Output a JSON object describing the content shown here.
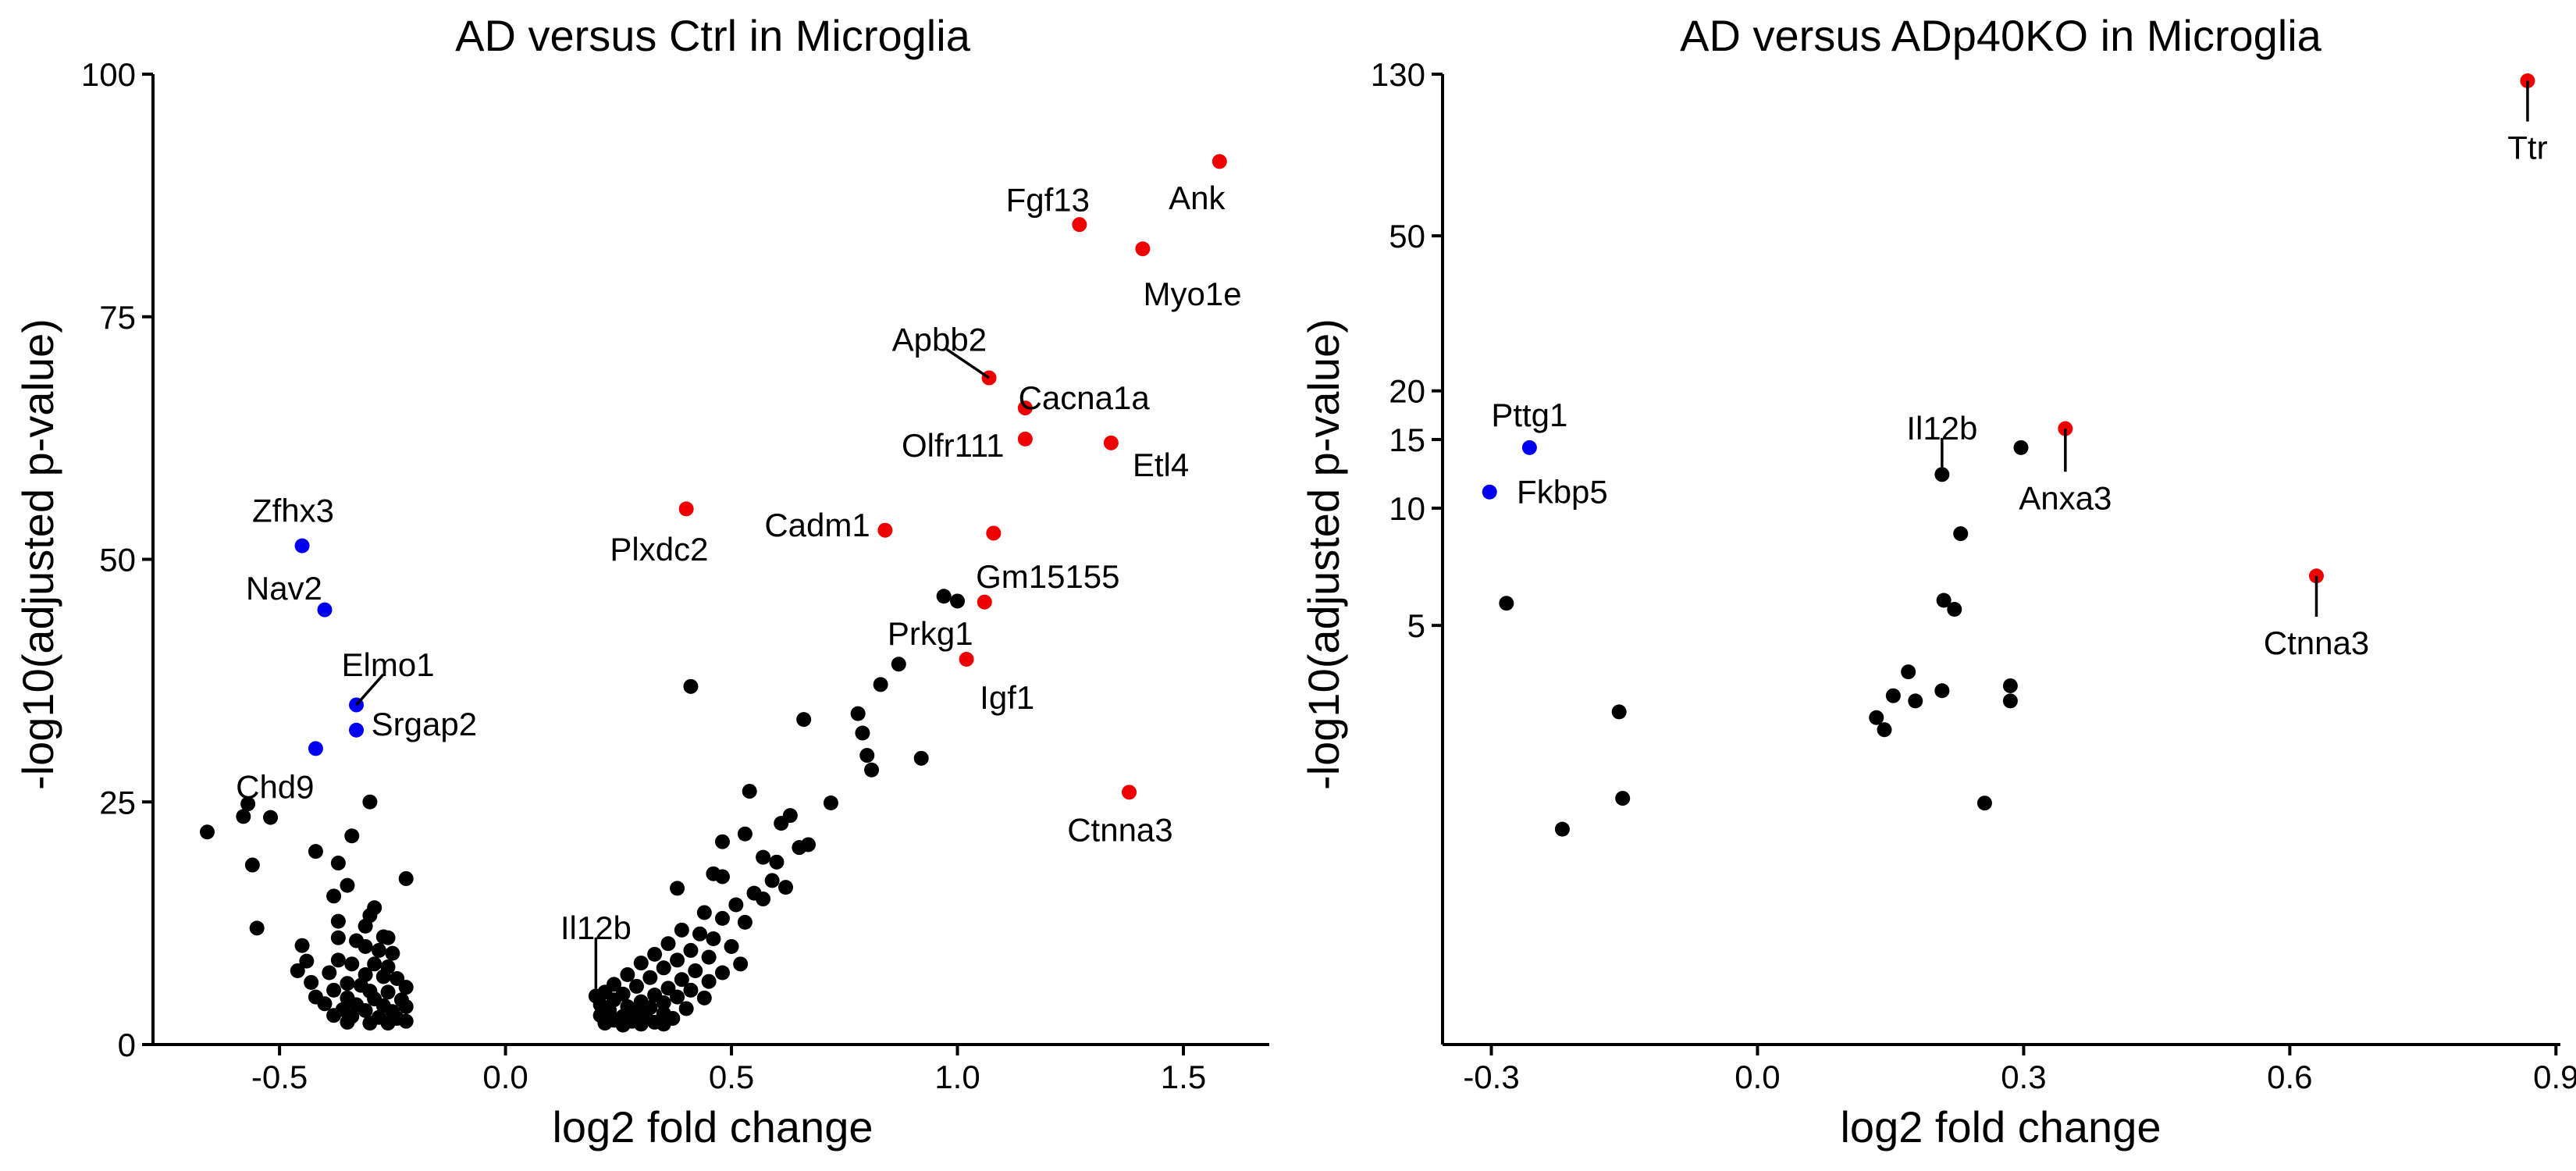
{
  "chart_data": [
    {
      "type": "scatter",
      "title": "AD versus Ctrl in Microglia",
      "xlabel": "log2 fold change",
      "ylabel": "-log10(adjusted p-value)",
      "xlim": [
        -0.78,
        1.69
      ],
      "ylim": [
        0,
        100
      ],
      "xticks": [
        -0.5,
        0.0,
        0.5,
        1.0,
        1.5
      ],
      "xtick_labels": [
        "-0.5",
        "0.0",
        "0.5",
        "1.0",
        "1.5"
      ],
      "yticks": [
        0,
        25,
        50,
        75,
        100
      ],
      "ytick_labels": [
        "0",
        "25",
        "50",
        "75",
        "100"
      ],
      "grid": false,
      "colors": {
        "up": "#ee0000",
        "down": "#0000ee",
        "ns": "#000000"
      },
      "points": [
        {
          "x": 1.58,
          "y": 91.0,
          "color": "up",
          "label": "Ank",
          "lx": 1.53,
          "ly": 87.2
        },
        {
          "x": 1.27,
          "y": 84.5,
          "color": "up",
          "label": "Fgf13",
          "lx": 1.2,
          "ly": 87.0
        },
        {
          "x": 1.41,
          "y": 82.0,
          "color": "up",
          "label": "Myo1e",
          "lx": 1.52,
          "ly": 77.3
        },
        {
          "x": 1.07,
          "y": 68.7,
          "color": "up",
          "label": "Apbb2",
          "lx": 0.96,
          "ly": 72.6,
          "leader": true
        },
        {
          "x": 1.15,
          "y": 65.6,
          "color": "up",
          "label": "Cacna1a",
          "lx": 1.28,
          "ly": 66.6
        },
        {
          "x": 1.15,
          "y": 62.4,
          "color": "up",
          "label": "Olfr111",
          "lx": 0.99,
          "ly": 61.7
        },
        {
          "x": 1.34,
          "y": 62.0,
          "color": "up",
          "label": "Etl4",
          "lx": 1.45,
          "ly": 59.7
        },
        {
          "x": 0.4,
          "y": 55.2,
          "color": "up",
          "label": "Plxdc2",
          "lx": 0.34,
          "ly": 51.0
        },
        {
          "x": 0.84,
          "y": 53.0,
          "color": "up",
          "label": "Cadm1",
          "lx": 0.69,
          "ly": 53.5
        },
        {
          "x": 1.08,
          "y": 52.7,
          "color": "up",
          "label": "Gm15155",
          "lx": 1.2,
          "ly": 48.2
        },
        {
          "x": 1.06,
          "y": 45.6,
          "color": "up",
          "label": "Prkg1",
          "lx": 0.94,
          "ly": 42.3
        },
        {
          "x": 1.02,
          "y": 39.7,
          "color": "up",
          "label": "Igf1",
          "lx": 1.11,
          "ly": 35.7
        },
        {
          "x": 1.38,
          "y": 26.0,
          "color": "up",
          "label": "Ctnna3",
          "lx": 1.36,
          "ly": 22.1
        },
        {
          "x": -0.45,
          "y": 51.4,
          "color": "down",
          "label": "Zfhx3",
          "lx": -0.47,
          "ly": 55.0
        },
        {
          "x": -0.4,
          "y": 44.8,
          "color": "down",
          "label": "Nav2",
          "lx": -0.49,
          "ly": 47.0
        },
        {
          "x": -0.33,
          "y": 35.0,
          "color": "down",
          "label": "Elmo1",
          "lx": -0.26,
          "ly": 39.1,
          "leader": true
        },
        {
          "x": -0.33,
          "y": 32.4,
          "color": "down",
          "label": "Srgap2",
          "lx": -0.18,
          "ly": 33.0
        },
        {
          "x": -0.42,
          "y": 30.5,
          "color": "down",
          "label": "Chd9",
          "lx": -0.51,
          "ly": 26.5
        },
        {
          "x": 0.2,
          "y": 5.0,
          "color": "ns",
          "label": "Il12b",
          "lx": 0.2,
          "ly": 12.0,
          "leader": true
        },
        {
          "x": -0.66,
          "y": 21.9,
          "color": "ns"
        },
        {
          "x": -0.58,
          "y": 23.5,
          "color": "ns"
        },
        {
          "x": -0.57,
          "y": 24.8,
          "color": "ns"
        },
        {
          "x": -0.52,
          "y": 23.4,
          "color": "ns"
        },
        {
          "x": -0.56,
          "y": 18.5,
          "color": "ns"
        },
        {
          "x": -0.55,
          "y": 12.0,
          "color": "ns"
        },
        {
          "x": -0.3,
          "y": 25.0,
          "color": "ns"
        },
        {
          "x": -0.34,
          "y": 21.5,
          "color": "ns"
        },
        {
          "x": -0.42,
          "y": 19.9,
          "color": "ns"
        },
        {
          "x": -0.37,
          "y": 18.7,
          "color": "ns"
        },
        {
          "x": -0.35,
          "y": 16.4,
          "color": "ns"
        },
        {
          "x": -0.22,
          "y": 17.1,
          "color": "ns"
        },
        {
          "x": -0.38,
          "y": 15.3,
          "color": "ns"
        },
        {
          "x": -0.29,
          "y": 14.1,
          "color": "ns"
        },
        {
          "x": -0.3,
          "y": 13.3,
          "color": "ns"
        },
        {
          "x": -0.37,
          "y": 12.7,
          "color": "ns"
        },
        {
          "x": -0.31,
          "y": 12.2,
          "color": "ns"
        },
        {
          "x": -0.27,
          "y": 11.1,
          "color": "ns"
        },
        {
          "x": -0.26,
          "y": 11.0,
          "color": "ns"
        },
        {
          "x": -0.37,
          "y": 11.0,
          "color": "ns"
        },
        {
          "x": -0.33,
          "y": 10.7,
          "color": "ns"
        },
        {
          "x": -0.45,
          "y": 10.2,
          "color": "ns"
        },
        {
          "x": -0.31,
          "y": 10.1,
          "color": "ns"
        },
        {
          "x": -0.28,
          "y": 9.7,
          "color": "ns"
        },
        {
          "x": -0.25,
          "y": 9.4,
          "color": "ns"
        },
        {
          "x": -0.44,
          "y": 8.6,
          "color": "ns"
        },
        {
          "x": -0.37,
          "y": 8.7,
          "color": "ns"
        },
        {
          "x": -0.34,
          "y": 8.3,
          "color": "ns"
        },
        {
          "x": -0.29,
          "y": 8.3,
          "color": "ns"
        },
        {
          "x": -0.26,
          "y": 8.0,
          "color": "ns"
        },
        {
          "x": -0.46,
          "y": 7.6,
          "color": "ns"
        },
        {
          "x": -0.39,
          "y": 7.4,
          "color": "ns"
        },
        {
          "x": -0.31,
          "y": 7.2,
          "color": "ns"
        },
        {
          "x": -0.27,
          "y": 7.0,
          "color": "ns"
        },
        {
          "x": -0.24,
          "y": 6.8,
          "color": "ns"
        },
        {
          "x": -0.43,
          "y": 6.4,
          "color": "ns"
        },
        {
          "x": -0.35,
          "y": 6.3,
          "color": "ns"
        },
        {
          "x": -0.32,
          "y": 6.1,
          "color": "ns"
        },
        {
          "x": -0.22,
          "y": 5.9,
          "color": "ns"
        },
        {
          "x": -0.38,
          "y": 5.6,
          "color": "ns"
        },
        {
          "x": -0.3,
          "y": 5.5,
          "color": "ns"
        },
        {
          "x": -0.26,
          "y": 5.4,
          "color": "ns"
        },
        {
          "x": -0.42,
          "y": 4.9,
          "color": "ns"
        },
        {
          "x": -0.35,
          "y": 4.8,
          "color": "ns"
        },
        {
          "x": -0.29,
          "y": 4.7,
          "color": "ns"
        },
        {
          "x": -0.23,
          "y": 4.6,
          "color": "ns"
        },
        {
          "x": -0.4,
          "y": 4.2,
          "color": "ns"
        },
        {
          "x": -0.33,
          "y": 4.1,
          "color": "ns"
        },
        {
          "x": -0.27,
          "y": 4.0,
          "color": "ns"
        },
        {
          "x": -0.22,
          "y": 3.9,
          "color": "ns"
        },
        {
          "x": -0.36,
          "y": 3.6,
          "color": "ns"
        },
        {
          "x": -0.31,
          "y": 3.5,
          "color": "ns"
        },
        {
          "x": -0.25,
          "y": 3.4,
          "color": "ns"
        },
        {
          "x": -0.38,
          "y": 3.0,
          "color": "ns"
        },
        {
          "x": -0.34,
          "y": 2.9,
          "color": "ns"
        },
        {
          "x": -0.28,
          "y": 2.8,
          "color": "ns"
        },
        {
          "x": -0.24,
          "y": 2.7,
          "color": "ns"
        },
        {
          "x": -0.22,
          "y": 2.4,
          "color": "ns"
        },
        {
          "x": -0.35,
          "y": 2.3,
          "color": "ns"
        },
        {
          "x": -0.3,
          "y": 2.2,
          "color": "ns"
        },
        {
          "x": -0.26,
          "y": 2.2,
          "color": "ns"
        },
        {
          "x": 0.97,
          "y": 46.2,
          "color": "ns"
        },
        {
          "x": 1.0,
          "y": 45.7,
          "color": "ns"
        },
        {
          "x": 0.87,
          "y": 39.2,
          "color": "ns"
        },
        {
          "x": 0.83,
          "y": 37.1,
          "color": "ns"
        },
        {
          "x": 0.41,
          "y": 36.9,
          "color": "ns"
        },
        {
          "x": 0.78,
          "y": 34.1,
          "color": "ns"
        },
        {
          "x": 0.66,
          "y": 33.5,
          "color": "ns"
        },
        {
          "x": 0.79,
          "y": 32.1,
          "color": "ns"
        },
        {
          "x": 0.8,
          "y": 29.8,
          "color": "ns"
        },
        {
          "x": 0.92,
          "y": 29.5,
          "color": "ns"
        },
        {
          "x": 0.81,
          "y": 28.3,
          "color": "ns"
        },
        {
          "x": 0.54,
          "y": 26.1,
          "color": "ns"
        },
        {
          "x": 0.72,
          "y": 24.9,
          "color": "ns"
        },
        {
          "x": 0.63,
          "y": 23.6,
          "color": "ns"
        },
        {
          "x": 0.61,
          "y": 22.8,
          "color": "ns"
        },
        {
          "x": 0.53,
          "y": 21.7,
          "color": "ns"
        },
        {
          "x": 0.48,
          "y": 20.9,
          "color": "ns"
        },
        {
          "x": 0.67,
          "y": 20.6,
          "color": "ns"
        },
        {
          "x": 0.65,
          "y": 20.3,
          "color": "ns"
        },
        {
          "x": 0.57,
          "y": 19.3,
          "color": "ns"
        },
        {
          "x": 0.6,
          "y": 18.8,
          "color": "ns"
        },
        {
          "x": 0.46,
          "y": 17.6,
          "color": "ns"
        },
        {
          "x": 0.48,
          "y": 17.3,
          "color": "ns"
        },
        {
          "x": 0.59,
          "y": 16.9,
          "color": "ns"
        },
        {
          "x": 0.62,
          "y": 16.2,
          "color": "ns"
        },
        {
          "x": 0.38,
          "y": 16.1,
          "color": "ns"
        },
        {
          "x": 0.55,
          "y": 15.6,
          "color": "ns"
        },
        {
          "x": 0.57,
          "y": 15.0,
          "color": "ns"
        },
        {
          "x": 0.51,
          "y": 14.4,
          "color": "ns"
        },
        {
          "x": 0.44,
          "y": 13.6,
          "color": "ns"
        },
        {
          "x": 0.48,
          "y": 13.0,
          "color": "ns"
        },
        {
          "x": 0.53,
          "y": 12.6,
          "color": "ns"
        },
        {
          "x": 0.39,
          "y": 11.8,
          "color": "ns"
        },
        {
          "x": 0.43,
          "y": 11.4,
          "color": "ns"
        },
        {
          "x": 0.46,
          "y": 10.9,
          "color": "ns"
        },
        {
          "x": 0.36,
          "y": 10.4,
          "color": "ns"
        },
        {
          "x": 0.5,
          "y": 10.1,
          "color": "ns"
        },
        {
          "x": 0.41,
          "y": 9.7,
          "color": "ns"
        },
        {
          "x": 0.33,
          "y": 9.3,
          "color": "ns"
        },
        {
          "x": 0.45,
          "y": 9.0,
          "color": "ns"
        },
        {
          "x": 0.38,
          "y": 8.7,
          "color": "ns"
        },
        {
          "x": 0.3,
          "y": 8.4,
          "color": "ns"
        },
        {
          "x": 0.52,
          "y": 8.3,
          "color": "ns"
        },
        {
          "x": 0.35,
          "y": 7.9,
          "color": "ns"
        },
        {
          "x": 0.42,
          "y": 7.6,
          "color": "ns"
        },
        {
          "x": 0.48,
          "y": 7.4,
          "color": "ns"
        },
        {
          "x": 0.27,
          "y": 7.2,
          "color": "ns"
        },
        {
          "x": 0.32,
          "y": 6.9,
          "color": "ns"
        },
        {
          "x": 0.39,
          "y": 6.7,
          "color": "ns"
        },
        {
          "x": 0.45,
          "y": 6.5,
          "color": "ns"
        },
        {
          "x": 0.24,
          "y": 6.2,
          "color": "ns"
        },
        {
          "x": 0.29,
          "y": 6.0,
          "color": "ns"
        },
        {
          "x": 0.36,
          "y": 5.8,
          "color": "ns"
        },
        {
          "x": 0.41,
          "y": 5.6,
          "color": "ns"
        },
        {
          "x": 0.22,
          "y": 5.4,
          "color": "ns"
        },
        {
          "x": 0.26,
          "y": 5.2,
          "color": "ns"
        },
        {
          "x": 0.33,
          "y": 5.1,
          "color": "ns"
        },
        {
          "x": 0.38,
          "y": 4.9,
          "color": "ns"
        },
        {
          "x": 0.44,
          "y": 4.8,
          "color": "ns"
        },
        {
          "x": 0.24,
          "y": 4.6,
          "color": "ns"
        },
        {
          "x": 0.3,
          "y": 4.4,
          "color": "ns"
        },
        {
          "x": 0.35,
          "y": 4.3,
          "color": "ns"
        },
        {
          "x": 0.21,
          "y": 4.1,
          "color": "ns"
        },
        {
          "x": 0.27,
          "y": 3.9,
          "color": "ns"
        },
        {
          "x": 0.32,
          "y": 3.8,
          "color": "ns"
        },
        {
          "x": 0.4,
          "y": 3.7,
          "color": "ns"
        },
        {
          "x": 0.23,
          "y": 3.5,
          "color": "ns"
        },
        {
          "x": 0.29,
          "y": 3.4,
          "color": "ns"
        },
        {
          "x": 0.35,
          "y": 3.2,
          "color": "ns"
        },
        {
          "x": 0.21,
          "y": 3.0,
          "color": "ns"
        },
        {
          "x": 0.26,
          "y": 2.9,
          "color": "ns"
        },
        {
          "x": 0.31,
          "y": 2.8,
          "color": "ns"
        },
        {
          "x": 0.37,
          "y": 2.7,
          "color": "ns"
        },
        {
          "x": 0.24,
          "y": 2.5,
          "color": "ns"
        },
        {
          "x": 0.28,
          "y": 2.4,
          "color": "ns"
        },
        {
          "x": 0.33,
          "y": 2.3,
          "color": "ns"
        },
        {
          "x": 0.22,
          "y": 2.2,
          "color": "ns"
        },
        {
          "x": 0.3,
          "y": 2.1,
          "color": "ns"
        },
        {
          "x": 0.35,
          "y": 2.1,
          "color": "ns"
        },
        {
          "x": 0.26,
          "y": 2.0,
          "color": "ns"
        }
      ]
    },
    {
      "type": "scatter",
      "title": "AD versus ADp40KO in Microglia",
      "xlabel": "log2 fold change",
      "ylabel": "-log10(adjusted p-value)",
      "xlim": [
        -0.355,
        0.905
      ],
      "ylim": [
        0.42,
        130
      ],
      "yscale": "log",
      "xticks": [
        -0.3,
        0.0,
        0.3,
        0.6,
        0.9
      ],
      "xtick_labels": [
        "-0.3",
        "0.0",
        "0.3",
        "0.6",
        "0.9"
      ],
      "yticks": [
        5,
        10,
        15,
        20,
        50,
        130
      ],
      "ytick_labels": [
        "5",
        "10",
        "15",
        "20",
        "50",
        "130"
      ],
      "grid": false,
      "colors": {
        "up": "#ee0000",
        "down": "#0000ee",
        "ns": "#000000"
      },
      "points": [
        {
          "x": 0.868,
          "y": 125,
          "color": "up",
          "label": "Ttr",
          "lx": 0.868,
          "ly": 84,
          "leader": true
        },
        {
          "x": 0.347,
          "y": 16.0,
          "color": "up",
          "label": "Anxa3",
          "lx": 0.347,
          "ly": 10.6,
          "leader": true
        },
        {
          "x": 0.63,
          "y": 6.7,
          "color": "up",
          "label": "Ctnna3",
          "lx": 0.63,
          "ly": 4.5,
          "leader": true
        },
        {
          "x": -0.257,
          "y": 14.3,
          "color": "down",
          "label": "Pttg1",
          "lx": -0.257,
          "ly": 17.3
        },
        {
          "x": -0.302,
          "y": 11.0,
          "color": "down",
          "label": "Fkbp5",
          "lx": -0.22,
          "ly": 11.0
        },
        {
          "x": 0.208,
          "y": 12.2,
          "color": "ns",
          "label": "Il12b",
          "lx": 0.208,
          "ly": 16.0,
          "leader": true
        },
        {
          "x": 0.297,
          "y": 14.3,
          "color": "ns"
        },
        {
          "x": 0.229,
          "y": 8.6,
          "color": "ns"
        },
        {
          "x": 0.21,
          "y": 5.8,
          "color": "ns"
        },
        {
          "x": 0.222,
          "y": 5.5,
          "color": "ns"
        },
        {
          "x": -0.283,
          "y": 5.7,
          "color": "ns"
        },
        {
          "x": 0.17,
          "y": 3.8,
          "color": "ns"
        },
        {
          "x": 0.285,
          "y": 3.5,
          "color": "ns"
        },
        {
          "x": 0.285,
          "y": 3.2,
          "color": "ns"
        },
        {
          "x": 0.153,
          "y": 3.3,
          "color": "ns"
        },
        {
          "x": 0.178,
          "y": 3.2,
          "color": "ns"
        },
        {
          "x": 0.208,
          "y": 3.4,
          "color": "ns"
        },
        {
          "x": 0.134,
          "y": 2.9,
          "color": "ns"
        },
        {
          "x": 0.143,
          "y": 2.7,
          "color": "ns"
        },
        {
          "x": -0.156,
          "y": 3.0,
          "color": "ns"
        },
        {
          "x": -0.152,
          "y": 1.8,
          "color": "ns"
        },
        {
          "x": -0.22,
          "y": 1.5,
          "color": "ns"
        },
        {
          "x": 0.256,
          "y": 1.75,
          "color": "ns"
        }
      ]
    }
  ]
}
